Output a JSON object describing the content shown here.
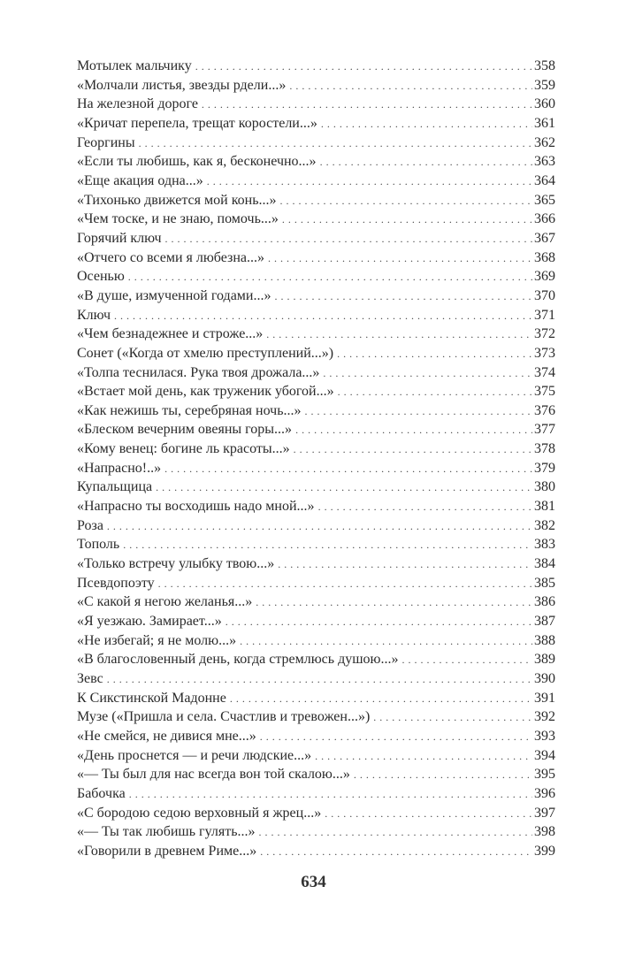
{
  "toc": [
    {
      "title": "Мотылек мальчику",
      "page": "358"
    },
    {
      "title": "«Молчали листья, звезды рдели...»",
      "page": "359"
    },
    {
      "title": "На железной дороге",
      "page": "360"
    },
    {
      "title": "«Кричат перепела, трещат коростели...»",
      "page": "361"
    },
    {
      "title": "Георгины",
      "page": "362"
    },
    {
      "title": "«Если ты любишь, как я, бесконечно...»",
      "page": "363"
    },
    {
      "title": "«Еще акация одна...»",
      "page": "364"
    },
    {
      "title": "«Тихонько движется мой конь...»",
      "page": "365"
    },
    {
      "title": "«Чем тоске, и не знаю, помочь...»",
      "page": "366"
    },
    {
      "title": "Горячий ключ",
      "page": "367"
    },
    {
      "title": "«Отчего со всеми я любезна...»",
      "page": "368"
    },
    {
      "title": "Осенью",
      "page": "369"
    },
    {
      "title": "«В душе, измученной годами...»",
      "page": "370"
    },
    {
      "title": "Ключ",
      "page": "371"
    },
    {
      "title": "«Чем безнадежнее и строже...»",
      "page": "372"
    },
    {
      "title": "Сонет («Когда от хмелю преступлений...»)",
      "page": "373"
    },
    {
      "title": "«Толпа теснилася. Рука твоя дрожала...»",
      "page": "374"
    },
    {
      "title": "«Встает мой день, как труженик убогой...»",
      "page": "375"
    },
    {
      "title": "«Как нежишь ты, серебряная ночь...»",
      "page": "376"
    },
    {
      "title": "«Блеском вечерним овеяны горы...»",
      "page": "377"
    },
    {
      "title": "«Кому венец: богине ль красоты...»",
      "page": "378"
    },
    {
      "title": "«Напрасно!..»",
      "page": "379"
    },
    {
      "title": "Купальщица",
      "page": "380"
    },
    {
      "title": "«Напрасно ты восходишь надо мной...»",
      "page": "381"
    },
    {
      "title": "Роза",
      "page": "382"
    },
    {
      "title": "Тополь",
      "page": "383"
    },
    {
      "title": "«Только встречу улыбку твою...»",
      "page": "384"
    },
    {
      "title": "Псевдопоэту",
      "page": "385"
    },
    {
      "title": "«С какой я негою желанья...»",
      "page": "386"
    },
    {
      "title": "«Я уезжаю. Замирает...»",
      "page": "387"
    },
    {
      "title": "«Не избегай; я не молю...»",
      "page": "388"
    },
    {
      "title": "«В благословенный день, когда стремлюсь душою...»",
      "page": "389"
    },
    {
      "title": "Зевс",
      "page": "390"
    },
    {
      "title": "К Сикстинской Мадонне",
      "page": "391"
    },
    {
      "title": "Музе («Пришла и села. Счастлив и тревожен...»)",
      "page": "392"
    },
    {
      "title": "«Не смейся, не дивися мне...»",
      "page": "393"
    },
    {
      "title": "«День проснется — и речи людские...»",
      "page": "394"
    },
    {
      "title": "«—  Ты был для нас всегда вон той скалою...»",
      "page": "395"
    },
    {
      "title": "Бабочка",
      "page": "396"
    },
    {
      "title": "«С бородою седою верховный я жрец...»",
      "page": "397"
    },
    {
      "title": "«—  Ты так любишь гулять...»",
      "page": "398"
    },
    {
      "title": "«Говорили в древнем Риме...»",
      "page": "399"
    }
  ],
  "folio": "634"
}
